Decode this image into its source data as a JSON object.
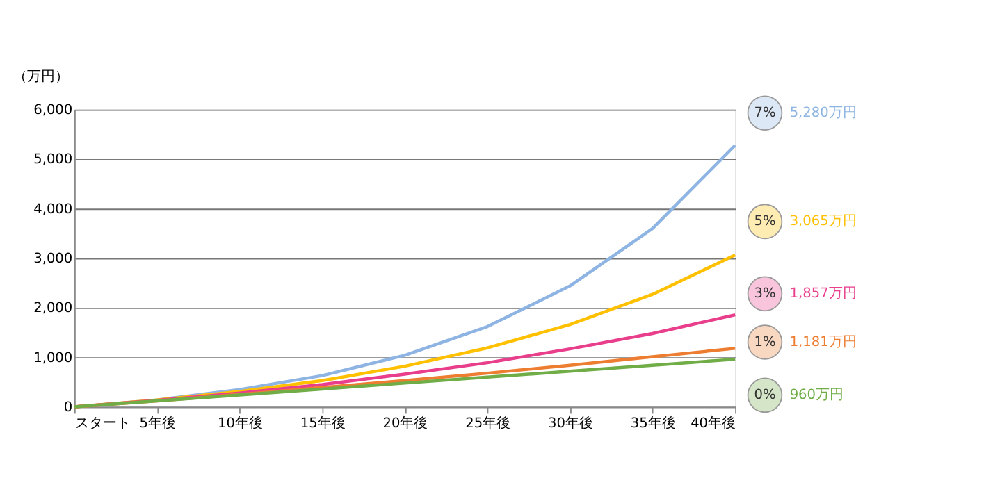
{
  "chart_data": {
    "type": "line",
    "ylabel": "（万円）",
    "x": [
      0,
      5,
      10,
      15,
      20,
      25,
      30,
      35,
      40
    ],
    "xlim": [
      0,
      40
    ],
    "xticks": [
      {
        "value": 0,
        "label": "スタート"
      },
      {
        "value": 5,
        "label": "5年後"
      },
      {
        "value": 10,
        "label": "10年後"
      },
      {
        "value": 15,
        "label": "15年後"
      },
      {
        "value": 20,
        "label": "20年後"
      },
      {
        "value": 25,
        "label": "25年後"
      },
      {
        "value": 30,
        "label": "30年後"
      },
      {
        "value": 35,
        "label": "35年後"
      },
      {
        "value": 40,
        "label": "40年後"
      }
    ],
    "ylim": [
      0,
      6000
    ],
    "yticks": [
      {
        "value": 0,
        "label": "0"
      },
      {
        "value": 1000,
        "label": "1,000"
      },
      {
        "value": 2000,
        "label": "2,000"
      },
      {
        "value": 3000,
        "label": "3,000"
      },
      {
        "value": 4000,
        "label": "4,000"
      },
      {
        "value": 5000,
        "label": "5,000"
      },
      {
        "value": 6000,
        "label": "6,000"
      }
    ],
    "grid": "y",
    "legend": false,
    "series": [
      {
        "name": "7%",
        "color": "#8db4e2",
        "values": [
          0,
          140,
          350,
          630,
          1040,
          1620,
          2440,
          3600,
          5280
        ]
      },
      {
        "name": "5%",
        "color": "#ffc000",
        "values": [
          0,
          140,
          310,
          530,
          820,
          1190,
          1660,
          2270,
          3065
        ]
      },
      {
        "name": "3%",
        "color": "#e83e8c",
        "values": [
          0,
          130,
          280,
          450,
          660,
          890,
          1170,
          1480,
          1857
        ]
      },
      {
        "name": "1%",
        "color": "#ed7d31",
        "values": [
          0,
          120,
          250,
          390,
          530,
          680,
          840,
          1010,
          1181
        ]
      },
      {
        "name": "0%",
        "color": "#70ad47",
        "values": [
          0,
          120,
          240,
          360,
          480,
          600,
          720,
          840,
          960
        ]
      }
    ],
    "annotations": [
      "5,280万円",
      "3,065万円",
      "1,857万円",
      "1,181万円",
      "960万円"
    ]
  }
}
